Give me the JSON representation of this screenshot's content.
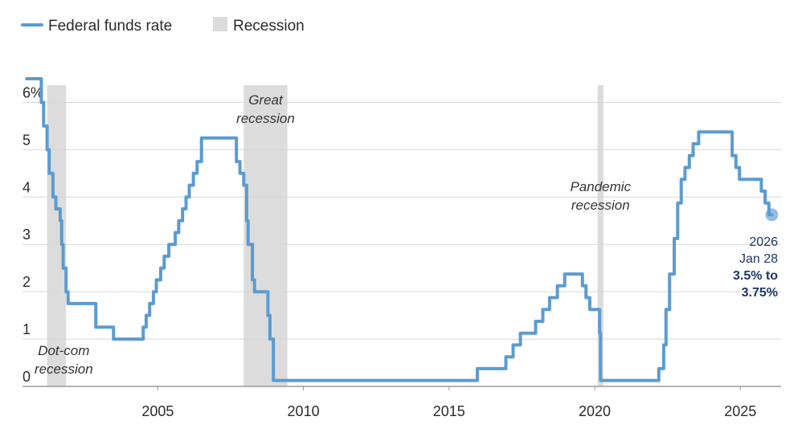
{
  "legend": {
    "series_label": "Federal funds rate",
    "recession_label": "Recession"
  },
  "colors": {
    "line": "#5b9bd0",
    "recession": "#dcdcdc",
    "grid": "#d7d7d7",
    "end_label": "#1c3764"
  },
  "chart_data": {
    "type": "line",
    "xlim": [
      2000.3,
      2026.4
    ],
    "ylim": [
      0,
      6.5
    ],
    "x_ticks": [
      2005,
      2010,
      2015,
      2020,
      2025
    ],
    "y_ticks": [
      {
        "value": 0,
        "label": "0"
      },
      {
        "value": 1,
        "label": "1"
      },
      {
        "value": 2,
        "label": "2"
      },
      {
        "value": 3,
        "label": "3"
      },
      {
        "value": 4,
        "label": "4"
      },
      {
        "value": 5,
        "label": "5"
      },
      {
        "value": 6,
        "label": "6%"
      }
    ],
    "grid": "horizontal",
    "legend_position": "top-left",
    "recessions": [
      {
        "start": 2001.2,
        "end": 2001.85,
        "label": [
          "Dot-com",
          "recession"
        ]
      },
      {
        "start": 2007.95,
        "end": 2009.45,
        "label": [
          "Great",
          "recession"
        ]
      },
      {
        "start": 2020.1,
        "end": 2020.3,
        "label": [
          "Pandemic",
          "recession"
        ]
      }
    ],
    "series": [
      {
        "name": "Federal funds rate",
        "step": true,
        "points": [
          [
            2000.5,
            6.5
          ],
          [
            2001.0,
            6.0
          ],
          [
            2001.08,
            5.5
          ],
          [
            2001.2,
            5.0
          ],
          [
            2001.27,
            4.5
          ],
          [
            2001.4,
            4.0
          ],
          [
            2001.5,
            3.75
          ],
          [
            2001.65,
            3.5
          ],
          [
            2001.7,
            3.0
          ],
          [
            2001.75,
            2.5
          ],
          [
            2001.85,
            2.0
          ],
          [
            2001.92,
            1.75
          ],
          [
            2002.87,
            1.25
          ],
          [
            2003.48,
            1.0
          ],
          [
            2004.5,
            1.25
          ],
          [
            2004.6,
            1.5
          ],
          [
            2004.72,
            1.75
          ],
          [
            2004.85,
            2.0
          ],
          [
            2004.95,
            2.25
          ],
          [
            2005.1,
            2.5
          ],
          [
            2005.22,
            2.75
          ],
          [
            2005.38,
            3.0
          ],
          [
            2005.6,
            3.25
          ],
          [
            2005.72,
            3.5
          ],
          [
            2005.85,
            3.75
          ],
          [
            2005.97,
            4.0
          ],
          [
            2006.08,
            4.25
          ],
          [
            2006.22,
            4.5
          ],
          [
            2006.35,
            4.75
          ],
          [
            2006.5,
            5.25
          ],
          [
            2007.7,
            4.75
          ],
          [
            2007.82,
            4.5
          ],
          [
            2007.95,
            4.25
          ],
          [
            2008.05,
            3.5
          ],
          [
            2008.1,
            3.0
          ],
          [
            2008.25,
            2.25
          ],
          [
            2008.32,
            2.0
          ],
          [
            2008.78,
            1.5
          ],
          [
            2008.85,
            1.0
          ],
          [
            2008.97,
            0.125
          ],
          [
            2015.97,
            0.375
          ],
          [
            2016.95,
            0.625
          ],
          [
            2017.2,
            0.875
          ],
          [
            2017.45,
            1.125
          ],
          [
            2017.97,
            1.375
          ],
          [
            2018.22,
            1.625
          ],
          [
            2018.45,
            1.875
          ],
          [
            2018.72,
            2.125
          ],
          [
            2018.97,
            2.375
          ],
          [
            2019.58,
            2.125
          ],
          [
            2019.7,
            1.875
          ],
          [
            2019.83,
            1.625
          ],
          [
            2020.17,
            1.125
          ],
          [
            2020.2,
            0.125
          ],
          [
            2022.2,
            0.375
          ],
          [
            2022.37,
            0.875
          ],
          [
            2022.45,
            1.625
          ],
          [
            2022.57,
            2.375
          ],
          [
            2022.73,
            3.125
          ],
          [
            2022.85,
            3.875
          ],
          [
            2022.97,
            4.375
          ],
          [
            2023.1,
            4.625
          ],
          [
            2023.25,
            4.875
          ],
          [
            2023.38,
            5.125
          ],
          [
            2023.57,
            5.375
          ],
          [
            2024.72,
            4.875
          ],
          [
            2024.85,
            4.625
          ],
          [
            2024.97,
            4.375
          ],
          [
            2025.72,
            4.125
          ],
          [
            2025.85,
            3.875
          ],
          [
            2025.98,
            3.625
          ],
          [
            2026.08,
            3.625
          ]
        ]
      }
    ],
    "end_point": {
      "x": 2026.08,
      "y": 3.625
    },
    "end_label": [
      "2026",
      "Jan 28",
      "3.5% to",
      "3.75%"
    ]
  }
}
